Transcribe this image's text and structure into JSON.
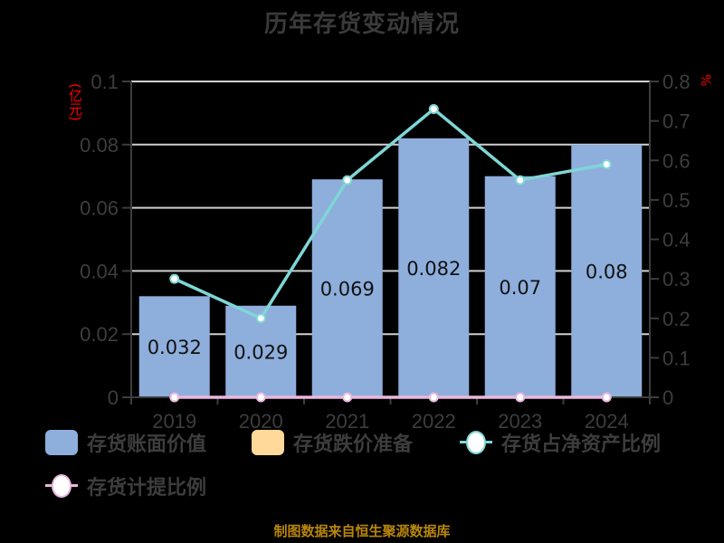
{
  "title": "历年存货变动情况",
  "unit_left": "(亿元)",
  "unit_right": "%",
  "source": "制图数据来自恒生聚源数据库",
  "legend": [
    {
      "label": "存货账面价值",
      "type": "rect",
      "color": "#8eaedc"
    },
    {
      "label": "存货跌价准备",
      "type": "rect",
      "color": "#ffd99a"
    },
    {
      "label": "存货占净资产比例",
      "type": "line",
      "color": "#7fd6d6"
    },
    {
      "label": "存货计提比例",
      "type": "line",
      "color": "#e8b8dc"
    }
  ],
  "chart_data": {
    "type": "bar+line",
    "title": "历年存货变动情况",
    "categories": [
      "2019",
      "2020",
      "2021",
      "2022",
      "2023",
      "2024"
    ],
    "y_left": {
      "label": "(亿元)",
      "ticks": [
        "0",
        "0.02",
        "0.04",
        "0.06",
        "0.08",
        "0.1"
      ],
      "range": [
        0,
        0.1
      ]
    },
    "y_right": {
      "label": "%",
      "ticks": [
        "0",
        "0.1",
        "0.2",
        "0.3",
        "0.4",
        "0.5",
        "0.6",
        "0.7",
        "0.8"
      ],
      "range": [
        0,
        0.8
      ]
    },
    "grid": true,
    "legend_position": "bottom",
    "series": [
      {
        "name": "存货账面价值",
        "type": "bar",
        "axis": "left",
        "color": "#8eaedc",
        "values": [
          0.032,
          0.029,
          0.069,
          0.082,
          0.07,
          0.08
        ],
        "labels": [
          "0.032",
          "0.029",
          "0.069",
          "0.082",
          "0.07",
          "0.08"
        ]
      },
      {
        "name": "存货跌价准备",
        "type": "bar",
        "axis": "left",
        "color": "#ffd99a",
        "values": [
          0,
          0,
          0,
          0,
          0,
          0
        ]
      },
      {
        "name": "存货占净资产比例",
        "type": "line",
        "axis": "right",
        "color": "#7fd6d6",
        "values": [
          0.3,
          0.2,
          0.55,
          0.73,
          0.55,
          0.59
        ]
      },
      {
        "name": "存货计提比例",
        "type": "line",
        "axis": "right",
        "color": "#e8b8dc",
        "values": [
          0,
          0,
          0,
          0,
          0,
          0
        ]
      }
    ]
  }
}
